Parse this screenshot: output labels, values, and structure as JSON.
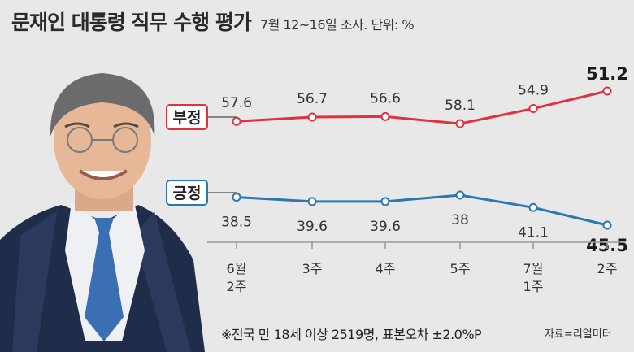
{
  "header": {
    "title": "문재인 대통령 직무 수행 평가",
    "subtitle": "7월 12~16일 조사. 단위: %"
  },
  "footer": {
    "note": "※전국 만 18세 이상 2519명, 표본오차 ±2.0%P",
    "source": "자료=리얼미터"
  },
  "colors": {
    "negative": "#e0313c",
    "positive": "#2a78ae",
    "background": "#e8e8e8"
  },
  "chart_data": {
    "type": "line",
    "categories": [
      [
        "6월",
        "2주"
      ],
      [
        "3주"
      ],
      [
        "4주"
      ],
      [
        "5주"
      ],
      [
        "7월",
        "1주"
      ],
      [
        "2주"
      ]
    ],
    "series": [
      {
        "name": "부정",
        "values": [
          57.6,
          56.7,
          56.6,
          58.1,
          54.9,
          51.2
        ],
        "value_labels": [
          "57.6",
          "56.7",
          "56.6",
          "58.1",
          "54.9",
          "51.2"
        ]
      },
      {
        "name": "긍정",
        "values": [
          38.5,
          39.6,
          39.6,
          38.0,
          41.1,
          45.5
        ],
        "value_labels": [
          "38.5",
          "39.6",
          "39.6",
          "38",
          "41.1",
          "45.5"
        ]
      }
    ],
    "grid": false,
    "legend": "labels-left-of-lines"
  }
}
